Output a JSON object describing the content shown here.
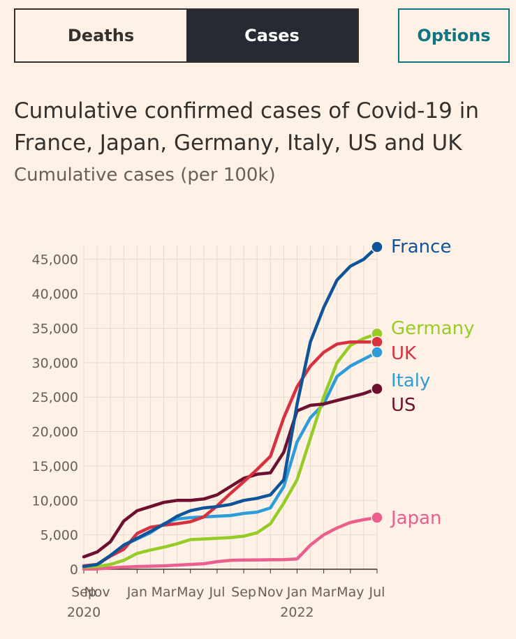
{
  "tabs": [
    {
      "label": "Deaths",
      "active": false
    },
    {
      "label": "Cases",
      "active": true
    }
  ],
  "options_label": "Options",
  "colors": {
    "France": "#0F5499",
    "Germany": "#96CC28",
    "UK": "#D7313F",
    "Italy": "#2C9DD8",
    "US": "#6D0F2E",
    "Japan": "#EB5E8D",
    "grid": "#E6D9CE",
    "axis": "#33302E"
  },
  "chart_data": {
    "type": "line",
    "title": "Cumulative confirmed cases of Covid-19 in France, Japan, Germany, Italy, US and UK",
    "ylabel": "Cumulative cases (per 100k)",
    "ylim": [
      0,
      47000
    ],
    "xlim": [
      0,
      22
    ],
    "yticks": [
      0,
      5000,
      10000,
      15000,
      20000,
      25000,
      30000,
      35000,
      40000,
      45000
    ],
    "ytick_labels": [
      "0",
      "5,000",
      "10,000",
      "15,000",
      "20,000",
      "25,000",
      "30,000",
      "35,000",
      "40,000",
      "45,000"
    ],
    "xticks": [
      {
        "x": 0,
        "label": "Sep",
        "year": "2020"
      },
      {
        "x": 1,
        "label": "Nov",
        "year": ""
      },
      {
        "x": 4,
        "label": "Jan",
        "year": ""
      },
      {
        "x": 6,
        "label": "Mar",
        "year": ""
      },
      {
        "x": 8,
        "label": "May",
        "year": ""
      },
      {
        "x": 10,
        "label": "Jul",
        "year": ""
      },
      {
        "x": 12,
        "label": "Sep",
        "year": ""
      },
      {
        "x": 14,
        "label": "Nov",
        "year": ""
      },
      {
        "x": 16,
        "label": "Jan",
        "year": "2022"
      },
      {
        "x": 18,
        "label": "Mar",
        "year": ""
      },
      {
        "x": 20,
        "label": "May",
        "year": ""
      },
      {
        "x": 22,
        "label": "Jul",
        "year": ""
      }
    ],
    "series": [
      {
        "name": "France",
        "points": [
          [
            0,
            400
          ],
          [
            1,
            700
          ],
          [
            2,
            2000
          ],
          [
            3,
            3500
          ],
          [
            4,
            4500
          ],
          [
            5,
            5500
          ],
          [
            6,
            6500
          ],
          [
            7,
            7700
          ],
          [
            8,
            8500
          ],
          [
            9,
            8900
          ],
          [
            10,
            9100
          ],
          [
            11,
            9400
          ],
          [
            12,
            10000
          ],
          [
            13,
            10300
          ],
          [
            14,
            10800
          ],
          [
            15,
            13000
          ],
          [
            16,
            24000
          ],
          [
            17,
            33000
          ],
          [
            18,
            38000
          ],
          [
            19,
            42000
          ],
          [
            20,
            44000
          ],
          [
            21,
            45000
          ],
          [
            22,
            46800
          ]
        ]
      },
      {
        "name": "Germany",
        "points": [
          [
            0,
            300
          ],
          [
            1,
            400
          ],
          [
            2,
            700
          ],
          [
            3,
            1300
          ],
          [
            4,
            2300
          ],
          [
            5,
            2800
          ],
          [
            6,
            3200
          ],
          [
            7,
            3700
          ],
          [
            8,
            4300
          ],
          [
            9,
            4400
          ],
          [
            10,
            4500
          ],
          [
            11,
            4600
          ],
          [
            12,
            4800
          ],
          [
            13,
            5300
          ],
          [
            14,
            6600
          ],
          [
            15,
            9600
          ],
          [
            16,
            13000
          ],
          [
            17,
            19000
          ],
          [
            18,
            25000
          ],
          [
            19,
            30000
          ],
          [
            20,
            32500
          ],
          [
            21,
            33500
          ],
          [
            22,
            34200
          ]
        ]
      },
      {
        "name": "UK",
        "points": [
          [
            0,
            500
          ],
          [
            1,
            700
          ],
          [
            2,
            1900
          ],
          [
            3,
            2900
          ],
          [
            4,
            5200
          ],
          [
            5,
            6100
          ],
          [
            6,
            6400
          ],
          [
            7,
            6600
          ],
          [
            8,
            6900
          ],
          [
            9,
            7600
          ],
          [
            10,
            9200
          ],
          [
            11,
            11000
          ],
          [
            12,
            12700
          ],
          [
            13,
            14500
          ],
          [
            14,
            16400
          ],
          [
            15,
            22000
          ],
          [
            16,
            26500
          ],
          [
            17,
            29500
          ],
          [
            18,
            31500
          ],
          [
            19,
            32700
          ],
          [
            20,
            33000
          ],
          [
            21,
            33000
          ],
          [
            22,
            33000
          ]
        ]
      },
      {
        "name": "Italy",
        "points": [
          [
            0,
            300
          ],
          [
            1,
            600
          ],
          [
            2,
            2000
          ],
          [
            3,
            3500
          ],
          [
            4,
            4400
          ],
          [
            5,
            5300
          ],
          [
            6,
            6600
          ],
          [
            7,
            7300
          ],
          [
            8,
            7500
          ],
          [
            9,
            7600
          ],
          [
            10,
            7700
          ],
          [
            11,
            7800
          ],
          [
            12,
            8100
          ],
          [
            13,
            8300
          ],
          [
            14,
            8900
          ],
          [
            15,
            12000
          ],
          [
            16,
            18500
          ],
          [
            17,
            22000
          ],
          [
            18,
            24000
          ],
          [
            19,
            28000
          ],
          [
            20,
            29500
          ],
          [
            21,
            30500
          ],
          [
            22,
            31500
          ]
        ]
      },
      {
        "name": "US",
        "points": [
          [
            0,
            1800
          ],
          [
            1,
            2500
          ],
          [
            2,
            4000
          ],
          [
            3,
            7000
          ],
          [
            4,
            8500
          ],
          [
            5,
            9100
          ],
          [
            6,
            9700
          ],
          [
            7,
            10000
          ],
          [
            8,
            10000
          ],
          [
            9,
            10200
          ],
          [
            10,
            10800
          ],
          [
            11,
            12000
          ],
          [
            12,
            13200
          ],
          [
            13,
            13800
          ],
          [
            14,
            14000
          ],
          [
            15,
            17000
          ],
          [
            16,
            23000
          ],
          [
            17,
            23800
          ],
          [
            18,
            24000
          ],
          [
            19,
            24500
          ],
          [
            20,
            25000
          ],
          [
            21,
            25500
          ],
          [
            22,
            26200
          ]
        ]
      },
      {
        "name": "Japan",
        "points": [
          [
            0,
            20
          ],
          [
            1,
            50
          ],
          [
            2,
            200
          ],
          [
            3,
            300
          ],
          [
            4,
            400
          ],
          [
            5,
            450
          ],
          [
            6,
            500
          ],
          [
            7,
            600
          ],
          [
            8,
            700
          ],
          [
            9,
            800
          ],
          [
            10,
            1100
          ],
          [
            11,
            1300
          ],
          [
            12,
            1350
          ],
          [
            13,
            1360
          ],
          [
            14,
            1380
          ],
          [
            15,
            1400
          ],
          [
            16,
            1500
          ],
          [
            17,
            3500
          ],
          [
            18,
            5000
          ],
          [
            19,
            6000
          ],
          [
            20,
            6800
          ],
          [
            21,
            7200
          ],
          [
            22,
            7500
          ]
        ]
      }
    ],
    "end_labels": [
      {
        "name": "France",
        "text": "France"
      },
      {
        "name": "Germany",
        "text": "Germany"
      },
      {
        "name": "UK",
        "text": "UK"
      },
      {
        "name": "Italy",
        "text": "Italy"
      },
      {
        "name": "US",
        "text": "US"
      },
      {
        "name": "Japan",
        "text": "Japan"
      }
    ]
  }
}
